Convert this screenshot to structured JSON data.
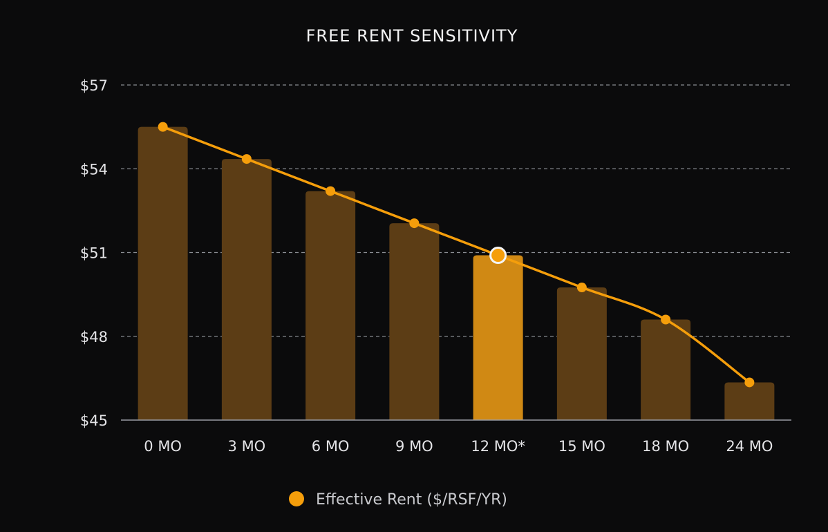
{
  "chart_data": {
    "type": "bar+line",
    "title": "FREE RENT SENSITIVITY",
    "categories": [
      "0 MO",
      "3 MO",
      "6 MO",
      "9 MO",
      "12 MO*",
      "15 MO",
      "18 MO",
      "24 MO"
    ],
    "highlighted_category": "12 MO*",
    "series": [
      {
        "name": "Effective Rent ($/RSF/YR)",
        "values": [
          55.5,
          54.35,
          53.2,
          52.05,
          50.9,
          49.75,
          48.6,
          46.35
        ]
      }
    ],
    "ylim": [
      45,
      57
    ],
    "yticks": [
      45,
      48,
      51,
      54,
      57
    ],
    "ytick_labels": [
      "$45",
      "$48",
      "$51",
      "$54",
      "$57"
    ],
    "grid": true,
    "legend_position": "bottom",
    "colors": {
      "background": "#0b0b0c",
      "bar": "#5c3d15",
      "bar_highlight": "#d08914",
      "line": "#f59e0b",
      "grid": "#8a8d93",
      "text": "#e4e4e7"
    }
  }
}
